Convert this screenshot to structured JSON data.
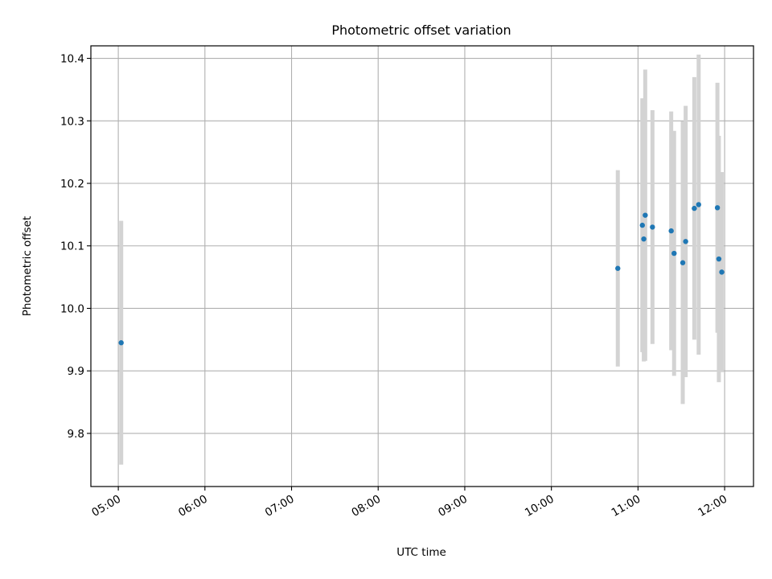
{
  "chart_data": {
    "type": "scatter",
    "title": "Photometric offset variation",
    "xlabel": "UTC time",
    "ylabel": "Photometric offset",
    "xlim": [
      "04:41",
      "12:20"
    ],
    "ylim": [
      9.715,
      10.42
    ],
    "grid": true,
    "x_ticks": [
      "05:00",
      "06:00",
      "07:00",
      "08:00",
      "09:00",
      "10:00",
      "11:00",
      "12:00"
    ],
    "y_ticks": [
      9.8,
      9.9,
      10.0,
      10.1,
      10.2,
      10.3,
      10.4
    ],
    "y_tick_labels": [
      "9.8",
      "9.9",
      "10.0",
      "10.1",
      "10.2",
      "10.3",
      "10.4"
    ],
    "point_color": "#1f77b4",
    "errorbar_color": "#d3d3d3",
    "points": [
      {
        "x": "05:02",
        "y": 9.945,
        "yerr": 0.195
      },
      {
        "x": "10:46",
        "y": 10.064,
        "yerr": 0.157
      },
      {
        "x": "11:03",
        "y": 10.133,
        "yerr": 0.203
      },
      {
        "x": "11:04",
        "y": 10.111,
        "yerr": 0.196
      },
      {
        "x": "11:05",
        "y": 10.149,
        "yerr": 0.233
      },
      {
        "x": "11:10",
        "y": 10.13,
        "yerr": 0.187
      },
      {
        "x": "11:23",
        "y": 10.124,
        "yerr": 0.191
      },
      {
        "x": "11:25",
        "y": 10.088,
        "yerr": 0.196
      },
      {
        "x": "11:31",
        "y": 10.073,
        "yerr": 0.226
      },
      {
        "x": "11:33",
        "y": 10.107,
        "yerr": 0.217
      },
      {
        "x": "11:39",
        "y": 10.16,
        "yerr": 0.21
      },
      {
        "x": "11:42",
        "y": 10.166,
        "yerr": 0.24
      },
      {
        "x": "11:55",
        "y": 10.161,
        "yerr": 0.2
      },
      {
        "x": "11:56",
        "y": 10.079,
        "yerr": 0.197
      },
      {
        "x": "11:58",
        "y": 10.058,
        "yerr": 0.16
      }
    ]
  }
}
